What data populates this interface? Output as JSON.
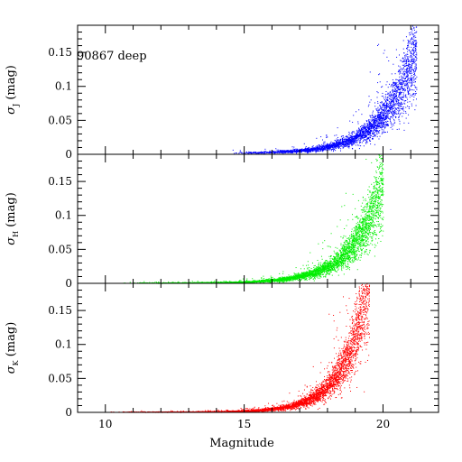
{
  "chart_data": {
    "type": "scatter",
    "title": "",
    "annotation": "90867 deep",
    "xlabel": "Magnitude",
    "xlim": [
      9,
      22
    ],
    "x_ticks": [
      10,
      15,
      20
    ],
    "grid": false,
    "panels": [
      {
        "band": "J",
        "ylabel_main": "σ",
        "ylabel_sub": "J",
        "ylabel_unit": "(mag)",
        "ylim": [
          0,
          0.19
        ],
        "y_ticks": [
          0,
          0.05,
          0.1,
          0.15
        ],
        "y_tick_labels": [
          "0",
          "0.05",
          "0.1",
          "0.15"
        ],
        "color": "#0000ff",
        "x_range": [
          14.5,
          21.2
        ],
        "sigma_model": {
          "floor": 0.002,
          "ref_mag": 20,
          "ref_sigma": 0.055,
          "scale_mag": 1.05
        },
        "n_points": 3200
      },
      {
        "band": "H",
        "ylabel_main": "σ",
        "ylabel_sub": "H",
        "ylabel_unit": "(mag)",
        "ylim": [
          0,
          0.19
        ],
        "y_ticks": [
          0,
          0.05,
          0.1,
          0.15
        ],
        "y_tick_labels": [
          "0",
          "0.05",
          "0.1",
          "0.15"
        ],
        "color": "#00ee00",
        "x_range": [
          10.5,
          20.0
        ],
        "sigma_model": {
          "floor": 0.001,
          "ref_mag": 19,
          "ref_sigma": 0.06,
          "scale_mag": 1.0
        },
        "n_points": 4500
      },
      {
        "band": "K",
        "ylabel_main": "σ",
        "ylabel_sub": "K",
        "ylabel_unit": "(mag)",
        "ylim": [
          0,
          0.19
        ],
        "y_ticks": [
          0,
          0.05,
          0.1,
          0.15
        ],
        "y_tick_labels": [
          "0",
          "0.05",
          "0.1",
          "0.15"
        ],
        "color": "#ff0000",
        "x_range": [
          10.0,
          19.5
        ],
        "sigma_model": {
          "floor": 0.001,
          "ref_mag": 18.7,
          "ref_sigma": 0.08,
          "scale_mag": 0.85
        },
        "n_points": 4500
      }
    ]
  }
}
